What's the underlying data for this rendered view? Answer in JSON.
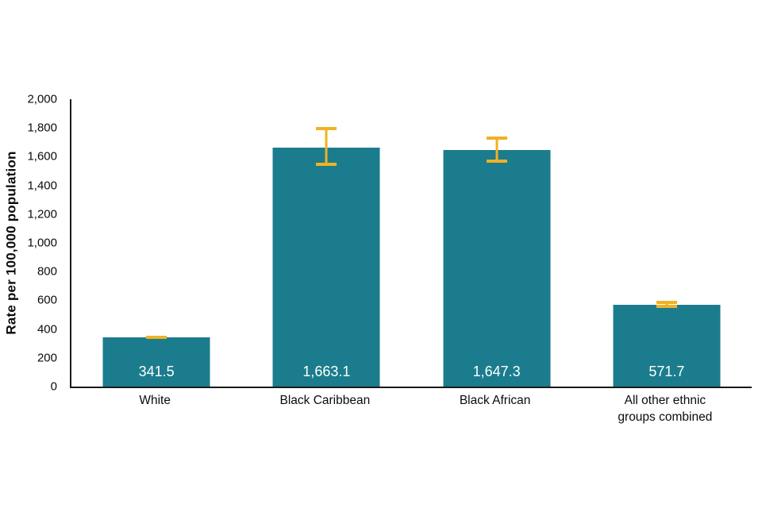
{
  "chart_data": {
    "type": "bar",
    "title": "",
    "xlabel": "",
    "ylabel": "Rate per 100,000 population",
    "ylim": [
      0,
      2000
    ],
    "ytick_step": 200,
    "yticks": [
      "0",
      "200",
      "400",
      "600",
      "800",
      "1,000",
      "1,200",
      "1,400",
      "1,600",
      "1,800",
      "2,000"
    ],
    "categories": [
      "White",
      "Black Caribbean",
      "Black African",
      "All other ethnic groups combined"
    ],
    "values": [
      341.5,
      1663.1,
      1647.3,
      571.7
    ],
    "value_labels": [
      "341.5",
      "1,663.1",
      "1,647.3",
      "571.7"
    ],
    "error_bars": [
      {
        "low": 332,
        "high": 352
      },
      {
        "low": 1535,
        "high": 1805
      },
      {
        "low": 1560,
        "high": 1740
      },
      {
        "low": 548,
        "high": 598
      }
    ],
    "grid": false,
    "legend": false,
    "bar_color": "#1b7c8d",
    "error_bar_color": "#f0b123",
    "axis_color": "#1a1a1a",
    "value_label_color": "#ffffff"
  }
}
